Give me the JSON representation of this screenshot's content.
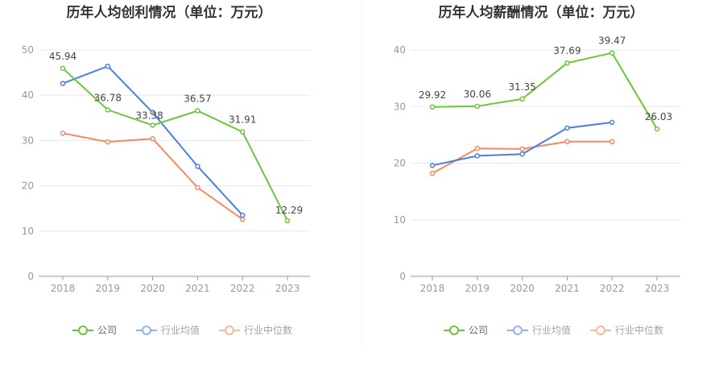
{
  "colors": {
    "company": "#6cc63a",
    "industry_avg": "#4a7fe0",
    "industry_median": "#f08b64",
    "grid": "#e6e8f0",
    "axis": "#999999",
    "divider": "#eeeeee"
  },
  "chart_data": [
    {
      "type": "line",
      "title": "历年人均创利情况（单位：万元）",
      "categories": [
        "2018",
        "2019",
        "2020",
        "2021",
        "2022",
        "2023"
      ],
      "ylim": [
        0,
        50
      ],
      "yticks": [
        0,
        10,
        20,
        30,
        40,
        50
      ],
      "grid": true,
      "legend_position": "bottom-center",
      "series": [
        {
          "name": "公司",
          "color_key": "company",
          "values": [
            45.94,
            36.78,
            33.38,
            36.57,
            31.91,
            12.29
          ],
          "labels": [
            "45.94",
            "36.78",
            "33.38",
            "36.57",
            "31.91",
            "12.29"
          ]
        },
        {
          "name": "行业均值",
          "color_key": "industry_avg",
          "values": [
            42.6,
            46.4,
            36.2,
            24.3,
            13.5,
            null
          ]
        },
        {
          "name": "行业中位数",
          "color_key": "industry_median",
          "values": [
            31.6,
            29.7,
            30.4,
            19.6,
            12.6,
            null
          ]
        }
      ]
    },
    {
      "type": "line",
      "title": "历年人均薪酬情况（单位：万元）",
      "categories": [
        "2018",
        "2019",
        "2020",
        "2021",
        "2022",
        "2023"
      ],
      "ylim": [
        0,
        40
      ],
      "yticks": [
        0,
        10,
        20,
        30,
        40
      ],
      "grid": true,
      "legend_position": "bottom-center",
      "series": [
        {
          "name": "公司",
          "color_key": "company",
          "values": [
            29.92,
            30.06,
            31.35,
            37.69,
            39.47,
            26.03
          ],
          "labels": [
            "29.92",
            "30.06",
            "31.35",
            "37.69",
            "39.47",
            "26.03"
          ]
        },
        {
          "name": "行业均值",
          "color_key": "industry_avg",
          "values": [
            19.6,
            21.3,
            21.6,
            26.2,
            27.2,
            null
          ]
        },
        {
          "name": "行业中位数",
          "color_key": "industry_median",
          "values": [
            18.2,
            22.6,
            22.5,
            23.8,
            23.8,
            null
          ]
        }
      ]
    }
  ]
}
